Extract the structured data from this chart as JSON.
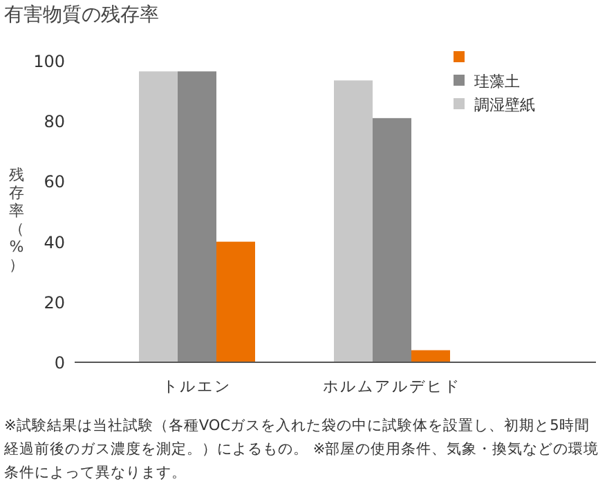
{
  "chart_data": {
    "type": "bar",
    "title": "有害物質の残存率",
    "ylabel": "残存率（%）",
    "categories": [
      "トルエン",
      "ホルムアルデヒド"
    ],
    "series": [
      {
        "color": "#ec7000",
        "values": [
          40,
          4
        ]
      },
      {
        "name": "珪藻土",
        "color": "#898989",
        "values": [
          96.5,
          81
        ]
      },
      {
        "name": "調湿壁紙",
        "color": "#c8c8c8",
        "values": [
          96.5,
          93.5
        ]
      }
    ],
    "ylim": [
      0,
      100
    ],
    "yticks": [
      0,
      20,
      40,
      60,
      80,
      100
    ],
    "grid": false,
    "legend": "top right",
    "annotations": [
      "※試験結果は当社試験（各種VOCガスを入れた袋の中に試験体を設置し、初期と5時間経過前後のガス濃度を測定。）によるもの。 ※部屋の使用条件、気象・換気などの環境条件によって異なります。"
    ]
  }
}
